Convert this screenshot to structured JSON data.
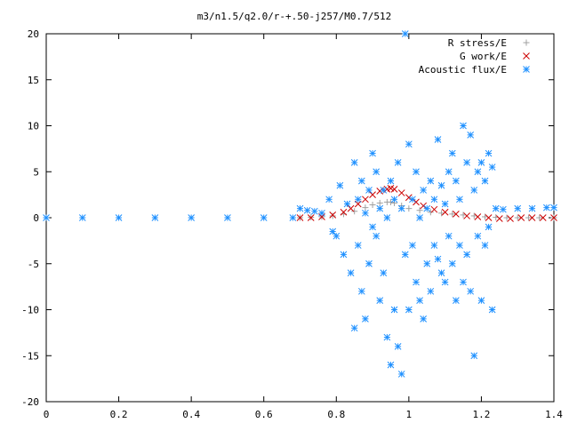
{
  "chart_data": {
    "type": "scatter",
    "title": "m3/n1.5/q2.0/r-+.50-j257/M0.7/512",
    "xlabel": "",
    "ylabel": "",
    "xlim": [
      0,
      1.4
    ],
    "ylim": [
      -20,
      20
    ],
    "x_ticks": [
      "0",
      "0.2",
      "0.4",
      "0.6",
      "0.8",
      "1",
      "1.2",
      "1.4"
    ],
    "y_ticks": [
      "20",
      "15",
      "10",
      "5",
      "0",
      "-5",
      "-10",
      "-15",
      "-20"
    ],
    "grid": false,
    "legend_position": "top-right",
    "series": [
      {
        "name": "R stress/E",
        "marker": "+",
        "color": "#a0a0a0",
        "x": [
          0.7,
          0.73,
          0.76,
          0.79,
          0.82,
          0.85,
          0.88,
          0.9,
          0.92,
          0.94,
          0.95,
          0.96,
          0.98,
          1.0,
          1.03,
          1.06,
          1.09,
          1.12,
          1.15,
          1.18,
          1.21,
          1.24,
          1.27,
          1.3,
          1.33,
          1.36,
          1.4
        ],
        "y": [
          0.0,
          0.05,
          0.1,
          0.2,
          0.4,
          0.7,
          1.1,
          1.4,
          1.6,
          1.7,
          1.7,
          1.6,
          1.3,
          1.0,
          0.8,
          0.6,
          0.5,
          0.4,
          0.3,
          0.2,
          0.1,
          0.05,
          0.0,
          0.0,
          0.0,
          0.0,
          0.0
        ]
      },
      {
        "name": "G work/E",
        "marker": "x",
        "color": "#cc0000",
        "x": [
          0.7,
          0.73,
          0.76,
          0.79,
          0.82,
          0.84,
          0.86,
          0.88,
          0.9,
          0.92,
          0.94,
          0.95,
          0.96,
          0.98,
          1.0,
          1.02,
          1.04,
          1.07,
          1.1,
          1.13,
          1.16,
          1.19,
          1.22,
          1.25,
          1.28,
          1.31,
          1.34,
          1.37,
          1.4
        ],
        "y": [
          0.0,
          0.0,
          0.1,
          0.3,
          0.6,
          1.0,
          1.5,
          2.0,
          2.5,
          2.9,
          3.1,
          3.2,
          3.1,
          2.7,
          2.2,
          1.7,
          1.3,
          0.9,
          0.6,
          0.4,
          0.2,
          0.1,
          0.0,
          -0.1,
          -0.1,
          0.0,
          0.0,
          0.0,
          0.0
        ]
      },
      {
        "name": "Acoustic flux/E",
        "marker": "*",
        "color": "#1e90ff",
        "x": [
          0.0,
          0.1,
          0.2,
          0.3,
          0.4,
          0.5,
          0.6,
          0.68,
          0.7,
          0.72,
          0.74,
          0.76,
          0.78,
          0.79,
          0.8,
          0.81,
          0.82,
          0.83,
          0.84,
          0.85,
          0.85,
          0.86,
          0.86,
          0.87,
          0.87,
          0.88,
          0.88,
          0.89,
          0.89,
          0.9,
          0.9,
          0.91,
          0.91,
          0.92,
          0.92,
          0.93,
          0.93,
          0.94,
          0.94,
          0.95,
          0.95,
          0.96,
          0.96,
          0.97,
          0.97,
          0.98,
          0.98,
          0.99,
          0.99,
          1.0,
          1.0,
          1.01,
          1.01,
          1.02,
          1.02,
          1.03,
          1.03,
          1.04,
          1.04,
          1.05,
          1.05,
          1.06,
          1.06,
          1.07,
          1.07,
          1.08,
          1.08,
          1.09,
          1.09,
          1.1,
          1.1,
          1.11,
          1.11,
          1.12,
          1.12,
          1.13,
          1.13,
          1.14,
          1.14,
          1.15,
          1.15,
          1.16,
          1.16,
          1.17,
          1.17,
          1.18,
          1.18,
          1.19,
          1.19,
          1.2,
          1.2,
          1.21,
          1.21,
          1.22,
          1.22,
          1.23,
          1.23,
          1.24,
          1.26,
          1.3,
          1.34,
          1.38,
          1.4
        ],
        "y": [
          0.0,
          0.0,
          0.0,
          0.0,
          0.0,
          0.0,
          0.0,
          0.0,
          1.0,
          0.8,
          0.7,
          0.5,
          2.0,
          -1.5,
          -2.0,
          3.5,
          -4.0,
          1.5,
          -6.0,
          6.0,
          -12.0,
          2.0,
          -3.0,
          4.0,
          -8.0,
          0.5,
          -11.0,
          3.0,
          -5.0,
          7.0,
          -1.0,
          -2.0,
          5.0,
          -9.0,
          1.0,
          3.0,
          -6.0,
          0.0,
          -13.0,
          4.0,
          -16.0,
          2.0,
          -10.0,
          -14.0,
          6.0,
          -17.0,
          1.0,
          20.0,
          -4.0,
          8.0,
          -10.0,
          2.0,
          -3.0,
          5.0,
          -7.0,
          0.0,
          -9.0,
          3.0,
          -11.0,
          1.0,
          -5.0,
          4.0,
          -8.0,
          2.0,
          -3.0,
          8.5,
          -4.5,
          3.5,
          -6.0,
          1.5,
          -7.0,
          5.0,
          -2.0,
          7.0,
          -5.0,
          4.0,
          -9.0,
          2.0,
          -3.0,
          10.0,
          -7.0,
          6.0,
          -4.0,
          9.0,
          -8.0,
          3.0,
          -15.0,
          5.0,
          -2.0,
          6.0,
          -9.0,
          4.0,
          -3.0,
          7.0,
          -1.0,
          5.5,
          -10.0,
          1.0,
          0.9,
          1.0,
          1.0,
          1.1,
          1.1
        ]
      }
    ]
  }
}
